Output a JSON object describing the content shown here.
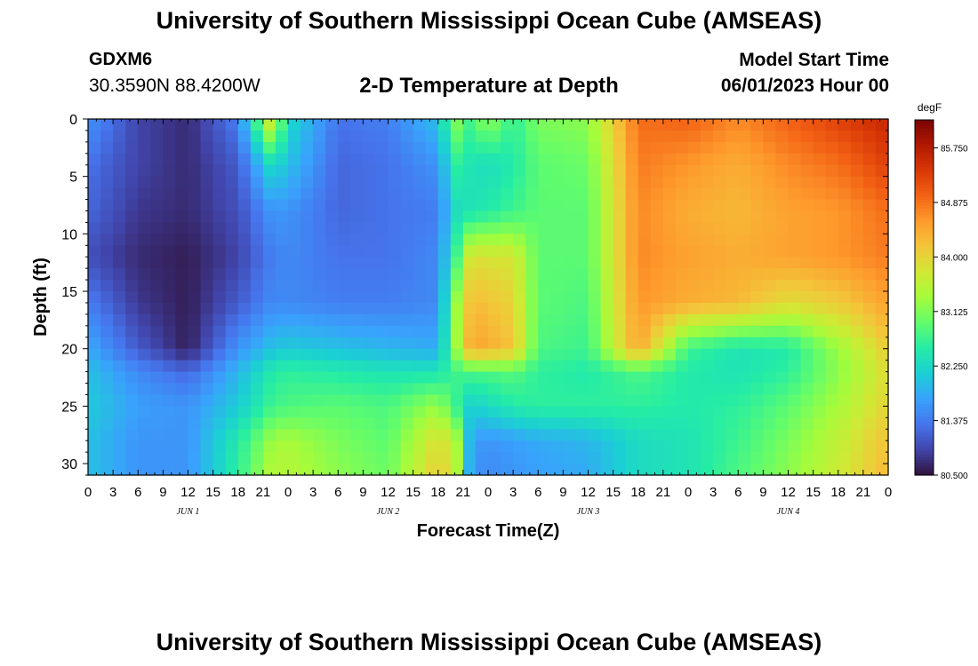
{
  "header": {
    "title": "University of Southern Mississippi Ocean Cube (AMSEAS)",
    "station": "GDXM6",
    "latlon": "30.3590N  88.4200W",
    "subtitle": "2-D Temperature at Depth",
    "start_label": "Model Start Time",
    "start_value": "06/01/2023 Hour 00"
  },
  "footer": {
    "title": "University of Southern Mississippi Ocean Cube (AMSEAS)"
  },
  "chart_data": {
    "type": "heatmap",
    "xlabel": "Forecast Time(Z)",
    "ylabel": "Depth (ft)",
    "x_tick_labels": [
      "0",
      "3",
      "6",
      "9",
      "12",
      "15",
      "18",
      "21",
      "0",
      "3",
      "6",
      "9",
      "12",
      "15",
      "18",
      "21",
      "0",
      "3",
      "6",
      "9",
      "12",
      "15",
      "18",
      "21",
      "0",
      "3",
      "6",
      "9",
      "12",
      "15",
      "18",
      "21",
      "0"
    ],
    "x_day_labels": [
      "JUN 1",
      "JUN 2",
      "JUN 3",
      "JUN 4"
    ],
    "xlim_hours": [
      0,
      96
    ],
    "ylim": [
      0,
      31
    ],
    "y_ticks": [
      0,
      5,
      10,
      15,
      20,
      25,
      30
    ],
    "y_inverted": true,
    "colorbar": {
      "unit": "degF",
      "min": 80.5,
      "max": 86.2,
      "ticks": [
        "85.750",
        "84.875",
        "84.000",
        "83.125",
        "82.250",
        "81.375",
        "80.500"
      ],
      "tick_values": [
        85.75,
        84.875,
        84.0,
        83.125,
        82.25,
        81.375,
        80.5
      ],
      "colors": [
        "#30123b",
        "#4145ab",
        "#4675ed",
        "#39a2fc",
        "#1bcfd4",
        "#24eca6",
        "#61fc6c",
        "#a4fc3b",
        "#d1e834",
        "#f3c63a",
        "#fe9b2d",
        "#f36315",
        "#d93806",
        "#b11901",
        "#7a0403"
      ]
    },
    "depth_levels_ft": [
      0,
      4,
      8,
      12,
      16,
      20,
      22,
      25,
      28,
      31
    ],
    "time_hours": [
      0,
      6,
      12,
      18,
      22,
      24,
      30,
      36,
      42,
      44,
      46,
      48,
      51,
      54,
      60,
      66,
      72,
      78,
      84,
      90,
      96
    ],
    "temperature_degF": [
      [
        81.6,
        80.9,
        80.7,
        81.4,
        83.9,
        82.3,
        81.3,
        81.4,
        82.0,
        83.2,
        82.7,
        83.3,
        82.6,
        83.1,
        83.2,
        84.9,
        85.0,
        84.7,
        85.0,
        85.3,
        85.6
      ],
      [
        81.3,
        80.9,
        80.7,
        81.1,
        82.3,
        82.0,
        81.2,
        81.3,
        81.6,
        82.6,
        82.4,
        82.3,
        82.5,
        82.9,
        83.0,
        84.8,
        84.6,
        84.4,
        84.7,
        84.9,
        85.3
      ],
      [
        81.2,
        80.8,
        80.7,
        81.0,
        81.6,
        81.6,
        81.2,
        81.3,
        81.4,
        82.3,
        82.4,
        82.5,
        82.7,
        82.9,
        82.9,
        84.7,
        84.4,
        84.3,
        84.5,
        84.6,
        84.9
      ],
      [
        81.0,
        80.7,
        80.6,
        80.9,
        81.4,
        81.5,
        81.3,
        81.3,
        81.5,
        82.6,
        83.9,
        83.8,
        83.8,
        82.9,
        82.9,
        84.7,
        84.5,
        84.4,
        84.5,
        84.6,
        84.8
      ],
      [
        81.4,
        80.8,
        80.6,
        81.1,
        81.5,
        81.5,
        81.4,
        81.4,
        81.5,
        83.2,
        84.3,
        84.2,
        84.0,
        82.9,
        82.8,
        84.6,
        84.4,
        84.3,
        83.9,
        84.1,
        84.5
      ],
      [
        81.8,
        81.1,
        80.6,
        81.6,
        82.0,
        82.1,
        82.0,
        81.9,
        81.8,
        83.2,
        84.5,
        84.4,
        84.2,
        82.8,
        82.7,
        84.5,
        82.7,
        82.4,
        82.5,
        83.3,
        84.1
      ],
      [
        82.0,
        81.5,
        81.2,
        81.9,
        82.5,
        82.6,
        82.5,
        82.4,
        82.4,
        82.7,
        82.8,
        82.8,
        82.9,
        82.6,
        82.5,
        82.8,
        82.5,
        82.4,
        82.6,
        83.2,
        83.9
      ],
      [
        82.1,
        81.7,
        81.6,
        82.1,
        82.7,
        82.8,
        82.9,
        82.8,
        83.3,
        82.7,
        82.1,
        82.3,
        82.5,
        82.6,
        82.6,
        82.6,
        82.5,
        82.6,
        82.9,
        83.4,
        84.0
      ],
      [
        82.0,
        81.6,
        81.6,
        82.5,
        83.3,
        83.4,
        83.1,
        82.9,
        83.9,
        83.6,
        81.7,
        81.6,
        81.7,
        81.8,
        81.9,
        82.3,
        82.4,
        82.7,
        83.1,
        83.6,
        84.2
      ],
      [
        82.0,
        81.6,
        81.6,
        82.6,
        83.5,
        83.5,
        83.2,
        83.0,
        84.1,
        83.7,
        81.6,
        81.5,
        81.6,
        81.7,
        81.8,
        82.3,
        82.4,
        82.8,
        83.2,
        83.7,
        84.3
      ]
    ]
  }
}
